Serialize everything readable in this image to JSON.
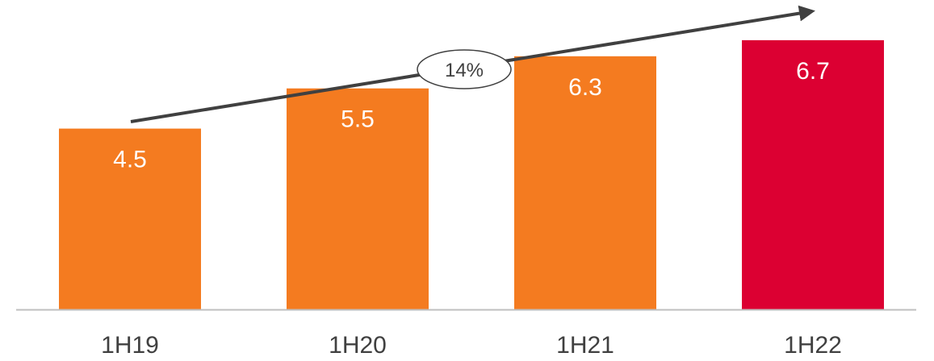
{
  "chart_data": {
    "type": "bar",
    "title": "",
    "xlabel": "",
    "ylabel": "",
    "categories": [
      "1H19",
      "1H20",
      "1H21",
      "1H22"
    ],
    "values": [
      4.5,
      5.5,
      6.3,
      6.7
    ],
    "data_labels": [
      "4.5",
      "5.5",
      "6.3",
      "6.7"
    ],
    "bar_colors": [
      "#F47B20",
      "#F47B20",
      "#F47B20",
      "#DC0032"
    ],
    "ylim": [
      0,
      7.7
    ],
    "grid": false,
    "legend": "none",
    "annotation": {
      "type": "growth-arrow",
      "label": "14%",
      "from_category": "1H19",
      "to_category": "1H22"
    }
  },
  "colors": {
    "axis": "#BFBFBF",
    "arrow": "#404040",
    "text": "#404040"
  }
}
